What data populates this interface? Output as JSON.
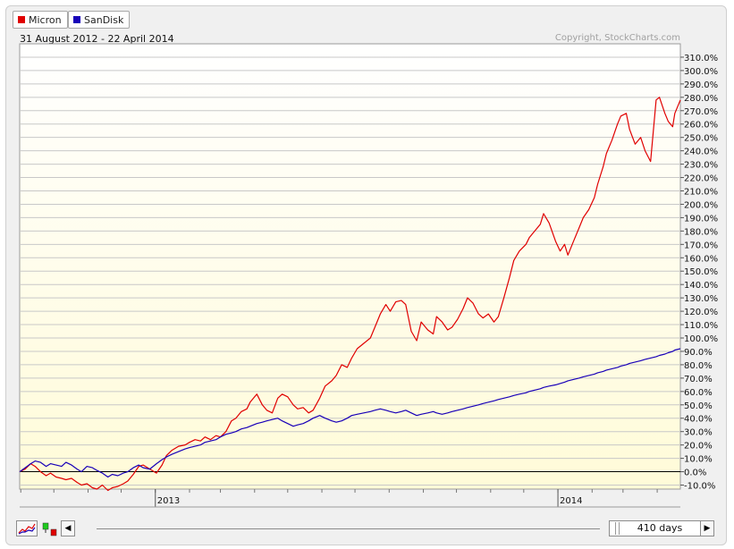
{
  "legend": {
    "items": [
      {
        "label": "Micron",
        "color": "#e00000"
      },
      {
        "label": "SanDisk",
        "color": "#1800b8"
      }
    ]
  },
  "header": {
    "date_range": "31 August 2012 - 22 April 2014",
    "copyright": "Copyright, StockCharts.com"
  },
  "colors": {
    "plot_background": "#fffbd8",
    "grid": "#c8c8c8",
    "zero_line": "#000000"
  },
  "controls": {
    "chart_type_icon": "line-chart-icon",
    "candlestick_icon": "candlestick-icon",
    "scroll_left_icon": "triangle-left-icon",
    "scroll_right_icon": "triangle-right-icon",
    "period_label": "410 days"
  },
  "chart_data": {
    "type": "line",
    "y_unit": "%",
    "ylim": [
      -13,
      320
    ],
    "y_ticks": [
      -10,
      0,
      10,
      20,
      30,
      40,
      50,
      60,
      70,
      80,
      90,
      100,
      110,
      120,
      130,
      140,
      150,
      160,
      170,
      180,
      190,
      200,
      210,
      220,
      230,
      240,
      250,
      260,
      270,
      280,
      290,
      300,
      310
    ],
    "y_tick_labels": [
      "-10.0%",
      "0.0%",
      "10.0%",
      "20.0%",
      "30.0%",
      "40.0%",
      "50.0%",
      "60.0%",
      "70.0%",
      "80.0%",
      "90.0%",
      "100.0%",
      "110.0%",
      "120.0%",
      "130.0%",
      "140.0%",
      "150.0%",
      "160.0%",
      "170.0%",
      "180.0%",
      "190.0%",
      "200.0%",
      "210.0%",
      "220.0%",
      "230.0%",
      "240.0%",
      "250.0%",
      "260.0%",
      "270.0%",
      "280.0%",
      "290.0%",
      "300.0%",
      "310.0%"
    ],
    "x_range": [
      "2012-08-31",
      "2014-04-22"
    ],
    "x_ticks": [
      {
        "date": "2013-01-01",
        "label": "2013"
      },
      {
        "date": "2014-01-01",
        "label": "2014"
      }
    ],
    "grid": true,
    "legend_position": "top-left",
    "series": [
      {
        "name": "Micron",
        "color": "#e00000",
        "points": [
          [
            "2012-08-31",
            0
          ],
          [
            "2012-09-05",
            2
          ],
          [
            "2012-09-10",
            6
          ],
          [
            "2012-09-14",
            4
          ],
          [
            "2012-09-19",
            0
          ],
          [
            "2012-09-24",
            -3
          ],
          [
            "2012-09-28",
            -1
          ],
          [
            "2012-10-03",
            -4
          ],
          [
            "2012-10-08",
            -5
          ],
          [
            "2012-10-12",
            -6
          ],
          [
            "2012-10-17",
            -5
          ],
          [
            "2012-10-22",
            -8
          ],
          [
            "2012-10-26",
            -10
          ],
          [
            "2012-10-31",
            -9
          ],
          [
            "2012-11-05",
            -12
          ],
          [
            "2012-11-09",
            -13
          ],
          [
            "2012-11-14",
            -10
          ],
          [
            "2012-11-19",
            -14
          ],
          [
            "2012-11-23",
            -12
          ],
          [
            "2012-11-28",
            -11
          ],
          [
            "2012-12-03",
            -9
          ],
          [
            "2012-12-07",
            -7
          ],
          [
            "2012-12-12",
            -2
          ],
          [
            "2012-12-17",
            4
          ],
          [
            "2012-12-21",
            5
          ],
          [
            "2012-12-27",
            2
          ],
          [
            "2013-01-02",
            -1
          ],
          [
            "2013-01-07",
            5
          ],
          [
            "2013-01-11",
            12
          ],
          [
            "2013-01-16",
            16
          ],
          [
            "2013-01-22",
            19
          ],
          [
            "2013-01-28",
            20
          ],
          [
            "2013-02-01",
            22
          ],
          [
            "2013-02-06",
            24
          ],
          [
            "2013-02-11",
            23
          ],
          [
            "2013-02-15",
            26
          ],
          [
            "2013-02-20",
            24
          ],
          [
            "2013-02-25",
            27
          ],
          [
            "2013-03-01",
            26
          ],
          [
            "2013-03-06",
            30
          ],
          [
            "2013-03-11",
            38
          ],
          [
            "2013-03-15",
            40
          ],
          [
            "2013-03-20",
            45
          ],
          [
            "2013-03-25",
            47
          ],
          [
            "2013-03-28",
            52
          ],
          [
            "2013-04-03",
            58
          ],
          [
            "2013-04-08",
            50
          ],
          [
            "2013-04-12",
            46
          ],
          [
            "2013-04-17",
            44
          ],
          [
            "2013-04-22",
            55
          ],
          [
            "2013-04-26",
            58
          ],
          [
            "2013-05-01",
            56
          ],
          [
            "2013-05-06",
            50
          ],
          [
            "2013-05-10",
            47
          ],
          [
            "2013-05-15",
            48
          ],
          [
            "2013-05-20",
            44
          ],
          [
            "2013-05-24",
            46
          ],
          [
            "2013-05-30",
            55
          ],
          [
            "2013-06-04",
            64
          ],
          [
            "2013-06-10",
            68
          ],
          [
            "2013-06-14",
            72
          ],
          [
            "2013-06-19",
            80
          ],
          [
            "2013-06-24",
            78
          ],
          [
            "2013-06-28",
            85
          ],
          [
            "2013-07-03",
            92
          ],
          [
            "2013-07-09",
            96
          ],
          [
            "2013-07-15",
            100
          ],
          [
            "2013-07-19",
            108
          ],
          [
            "2013-07-24",
            118
          ],
          [
            "2013-07-29",
            125
          ],
          [
            "2013-08-02",
            120
          ],
          [
            "2013-08-07",
            127
          ],
          [
            "2013-08-12",
            128
          ],
          [
            "2013-08-16",
            125
          ],
          [
            "2013-08-21",
            105
          ],
          [
            "2013-08-26",
            98
          ],
          [
            "2013-08-30",
            112
          ],
          [
            "2013-09-05",
            106
          ],
          [
            "2013-09-10",
            103
          ],
          [
            "2013-09-13",
            116
          ],
          [
            "2013-09-18",
            112
          ],
          [
            "2013-09-23",
            106
          ],
          [
            "2013-09-27",
            108
          ],
          [
            "2013-10-02",
            114
          ],
          [
            "2013-10-07",
            122
          ],
          [
            "2013-10-11",
            130
          ],
          [
            "2013-10-16",
            126
          ],
          [
            "2013-10-21",
            118
          ],
          [
            "2013-10-25",
            115
          ],
          [
            "2013-10-30",
            118
          ],
          [
            "2013-11-04",
            112
          ],
          [
            "2013-11-08",
            116
          ],
          [
            "2013-11-13",
            130
          ],
          [
            "2013-11-18",
            145
          ],
          [
            "2013-11-22",
            158
          ],
          [
            "2013-11-27",
            165
          ],
          [
            "2013-12-03",
            170
          ],
          [
            "2013-12-06",
            175
          ],
          [
            "2013-12-11",
            180
          ],
          [
            "2013-12-16",
            185
          ],
          [
            "2013-12-19",
            193
          ],
          [
            "2013-12-24",
            186
          ],
          [
            "2013-12-30",
            172
          ],
          [
            "2014-01-03",
            165
          ],
          [
            "2014-01-07",
            170
          ],
          [
            "2014-01-10",
            162
          ],
          [
            "2014-01-15",
            172
          ],
          [
            "2014-01-20",
            182
          ],
          [
            "2014-01-24",
            190
          ],
          [
            "2014-01-29",
            196
          ],
          [
            "2014-02-03",
            205
          ],
          [
            "2014-02-06",
            215
          ],
          [
            "2014-02-11",
            228
          ],
          [
            "2014-02-14",
            238
          ],
          [
            "2014-02-19",
            248
          ],
          [
            "2014-02-24",
            260
          ],
          [
            "2014-02-27",
            266
          ],
          [
            "2014-03-04",
            268
          ],
          [
            "2014-03-07",
            256
          ],
          [
            "2014-03-12",
            245
          ],
          [
            "2014-03-17",
            250
          ],
          [
            "2014-03-21",
            240
          ],
          [
            "2014-03-26",
            232
          ],
          [
            "2014-03-31",
            278
          ],
          [
            "2014-04-03",
            280
          ],
          [
            "2014-04-08",
            268
          ],
          [
            "2014-04-11",
            262
          ],
          [
            "2014-04-15",
            258
          ],
          [
            "2014-04-17",
            268
          ],
          [
            "2014-04-22",
            278
          ]
        ]
      },
      {
        "name": "SanDisk",
        "color": "#1800b8",
        "points": [
          [
            "2012-08-31",
            0
          ],
          [
            "2012-09-05",
            3
          ],
          [
            "2012-09-10",
            6
          ],
          [
            "2012-09-14",
            8
          ],
          [
            "2012-09-19",
            7
          ],
          [
            "2012-09-24",
            4
          ],
          [
            "2012-09-28",
            6
          ],
          [
            "2012-10-03",
            5
          ],
          [
            "2012-10-08",
            4
          ],
          [
            "2012-10-12",
            7
          ],
          [
            "2012-10-17",
            5
          ],
          [
            "2012-10-22",
            2
          ],
          [
            "2012-10-26",
            0
          ],
          [
            "2012-10-31",
            4
          ],
          [
            "2012-11-05",
            3
          ],
          [
            "2012-11-09",
            1
          ],
          [
            "2012-11-14",
            -1
          ],
          [
            "2012-11-19",
            -4
          ],
          [
            "2012-11-23",
            -2
          ],
          [
            "2012-11-28",
            -3
          ],
          [
            "2012-12-03",
            -1
          ],
          [
            "2012-12-07",
            0
          ],
          [
            "2012-12-12",
            3
          ],
          [
            "2012-12-17",
            5
          ],
          [
            "2012-12-21",
            3
          ],
          [
            "2012-12-27",
            2
          ],
          [
            "2013-01-02",
            6
          ],
          [
            "2013-01-07",
            9
          ],
          [
            "2013-01-11",
            11
          ],
          [
            "2013-01-16",
            13
          ],
          [
            "2013-01-22",
            15
          ],
          [
            "2013-01-28",
            17
          ],
          [
            "2013-02-01",
            18
          ],
          [
            "2013-02-06",
            19
          ],
          [
            "2013-02-11",
            20
          ],
          [
            "2013-02-15",
            22
          ],
          [
            "2013-02-20",
            23
          ],
          [
            "2013-02-25",
            24
          ],
          [
            "2013-03-01",
            26
          ],
          [
            "2013-03-06",
            28
          ],
          [
            "2013-03-11",
            29
          ],
          [
            "2013-03-15",
            30
          ],
          [
            "2013-03-20",
            32
          ],
          [
            "2013-03-25",
            33
          ],
          [
            "2013-03-28",
            34
          ],
          [
            "2013-04-03",
            36
          ],
          [
            "2013-04-08",
            37
          ],
          [
            "2013-04-12",
            38
          ],
          [
            "2013-04-17",
            39
          ],
          [
            "2013-04-22",
            40
          ],
          [
            "2013-04-26",
            38
          ],
          [
            "2013-05-01",
            36
          ],
          [
            "2013-05-06",
            34
          ],
          [
            "2013-05-10",
            35
          ],
          [
            "2013-05-15",
            36
          ],
          [
            "2013-05-20",
            38
          ],
          [
            "2013-05-24",
            40
          ],
          [
            "2013-05-30",
            42
          ],
          [
            "2013-06-04",
            40
          ],
          [
            "2013-06-10",
            38
          ],
          [
            "2013-06-14",
            37
          ],
          [
            "2013-06-19",
            38
          ],
          [
            "2013-06-24",
            40
          ],
          [
            "2013-06-28",
            42
          ],
          [
            "2013-07-03",
            43
          ],
          [
            "2013-07-09",
            44
          ],
          [
            "2013-07-15",
            45
          ],
          [
            "2013-07-19",
            46
          ],
          [
            "2013-07-24",
            47
          ],
          [
            "2013-07-29",
            46
          ],
          [
            "2013-08-02",
            45
          ],
          [
            "2013-08-07",
            44
          ],
          [
            "2013-08-12",
            45
          ],
          [
            "2013-08-16",
            46
          ],
          [
            "2013-08-21",
            44
          ],
          [
            "2013-08-26",
            42
          ],
          [
            "2013-08-30",
            43
          ],
          [
            "2013-09-05",
            44
          ],
          [
            "2013-09-10",
            45
          ],
          [
            "2013-09-13",
            44
          ],
          [
            "2013-09-18",
            43
          ],
          [
            "2013-09-23",
            44
          ],
          [
            "2013-09-27",
            45
          ],
          [
            "2013-10-02",
            46
          ],
          [
            "2013-10-07",
            47
          ],
          [
            "2013-10-11",
            48
          ],
          [
            "2013-10-16",
            49
          ],
          [
            "2013-10-21",
            50
          ],
          [
            "2013-10-25",
            51
          ],
          [
            "2013-10-30",
            52
          ],
          [
            "2013-11-04",
            53
          ],
          [
            "2013-11-08",
            54
          ],
          [
            "2013-11-13",
            55
          ],
          [
            "2013-11-18",
            56
          ],
          [
            "2013-11-22",
            57
          ],
          [
            "2013-11-27",
            58
          ],
          [
            "2013-12-03",
            59
          ],
          [
            "2013-12-06",
            60
          ],
          [
            "2013-12-11",
            61
          ],
          [
            "2013-12-16",
            62
          ],
          [
            "2013-12-19",
            63
          ],
          [
            "2013-12-24",
            64
          ],
          [
            "2013-12-30",
            65
          ],
          [
            "2014-01-03",
            66
          ],
          [
            "2014-01-07",
            67
          ],
          [
            "2014-01-10",
            68
          ],
          [
            "2014-01-15",
            69
          ],
          [
            "2014-01-20",
            70
          ],
          [
            "2014-01-24",
            71
          ],
          [
            "2014-01-29",
            72
          ],
          [
            "2014-02-03",
            73
          ],
          [
            "2014-02-06",
            74
          ],
          [
            "2014-02-11",
            75
          ],
          [
            "2014-02-14",
            76
          ],
          [
            "2014-02-19",
            77
          ],
          [
            "2014-02-24",
            78
          ],
          [
            "2014-02-27",
            79
          ],
          [
            "2014-03-04",
            80
          ],
          [
            "2014-03-07",
            81
          ],
          [
            "2014-03-12",
            82
          ],
          [
            "2014-03-17",
            83
          ],
          [
            "2014-03-21",
            84
          ],
          [
            "2014-03-26",
            85
          ],
          [
            "2014-03-31",
            86
          ],
          [
            "2014-04-03",
            87
          ],
          [
            "2014-04-08",
            88
          ],
          [
            "2014-04-11",
            89
          ],
          [
            "2014-04-15",
            90
          ],
          [
            "2014-04-17",
            91
          ],
          [
            "2014-04-22",
            92
          ]
        ]
      }
    ]
  }
}
